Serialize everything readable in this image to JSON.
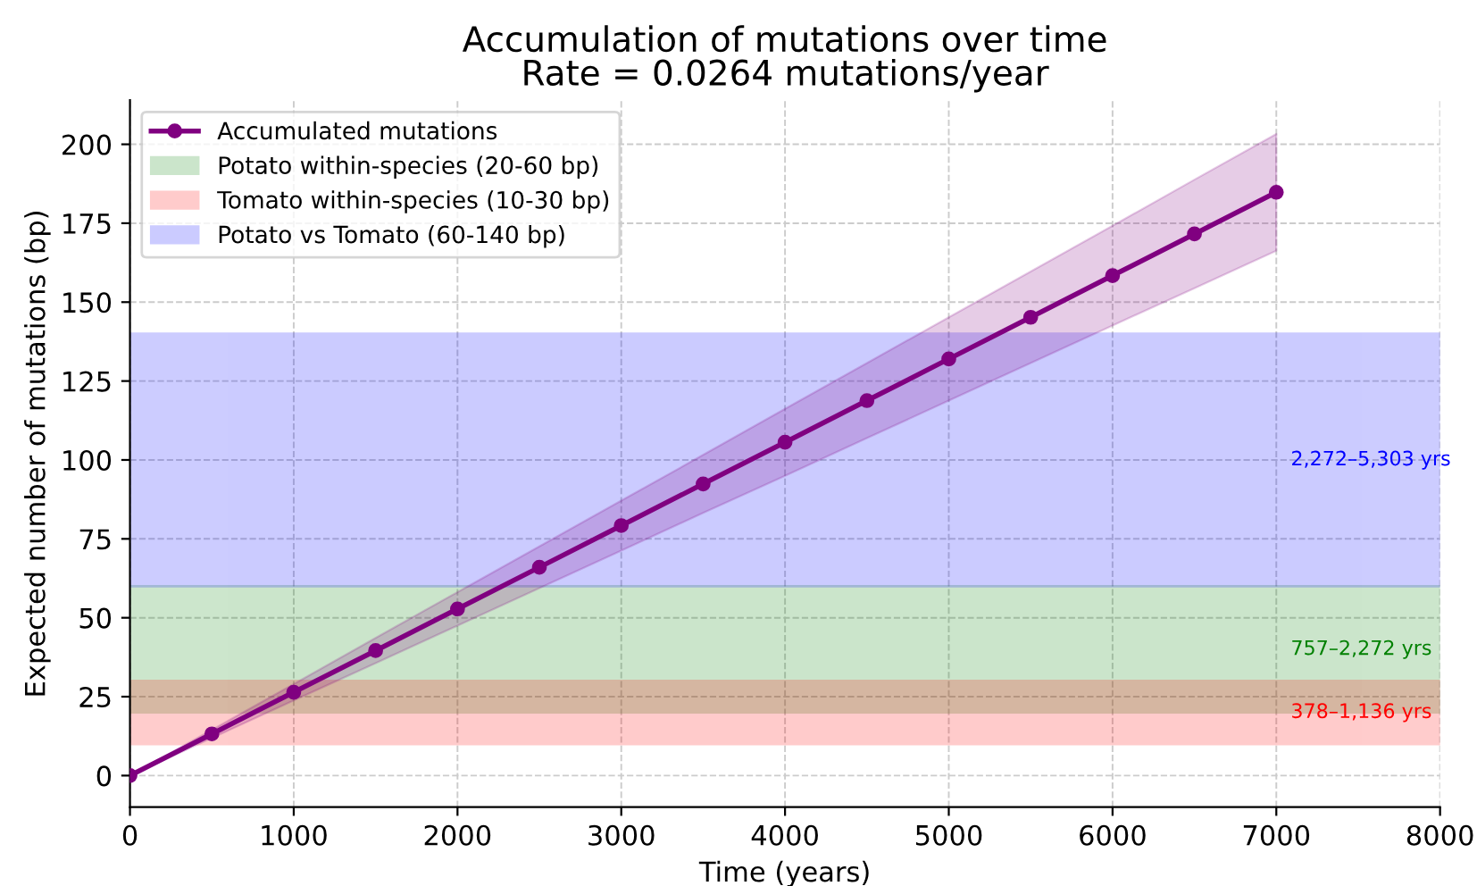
{
  "chart_data": {
    "type": "line",
    "title": "Accumulation of mutations over time",
    "subtitle": "Rate = 0.0264 mutations/year",
    "xlabel": "Time (years)",
    "ylabel": "Expected number of mutations (bp)",
    "x": [
      0,
      500,
      1000,
      1500,
      2000,
      2500,
      3000,
      3500,
      4000,
      4500,
      5000,
      5500,
      6000,
      6500,
      7000
    ],
    "series": [
      {
        "name": "Accumulated mutations",
        "color": "#800080",
        "values": [
          0,
          13.2,
          26.4,
          39.6,
          52.8,
          66,
          79.2,
          92.4,
          105.6,
          118.8,
          132,
          145.2,
          158.4,
          171.6,
          184.8
        ],
        "lower": [
          0,
          11.9,
          23.8,
          35.6,
          47.5,
          59.4,
          71.3,
          83.2,
          95,
          106.9,
          118.8,
          130.7,
          142.6,
          154.4,
          166.3
        ],
        "upper": [
          0,
          14.5,
          29,
          43.6,
          58.1,
          72.6,
          87.1,
          101.6,
          116.2,
          130.7,
          145.2,
          159.7,
          174.2,
          188.8,
          203.3
        ]
      }
    ],
    "bands": [
      {
        "axis": "y",
        "from": 20,
        "to": 60,
        "label": "Potato within-species (20-60 bp)",
        "color": "#008000"
      },
      {
        "axis": "y",
        "from": 10,
        "to": 30,
        "label": "Tomato within-species (10-30 bp)",
        "color": "#ff0000"
      },
      {
        "axis": "y",
        "from": 60,
        "to": 140,
        "label": "Potato vs Tomato (60-140 bp)",
        "color": "#0000ff"
      }
    ],
    "annotations": [
      "757–2,272 yrs",
      "378–1,136 yrs",
      "2,272–5,303 yrs"
    ],
    "xlim": [
      0,
      8000
    ],
    "ylim": [
      -10,
      214
    ],
    "xticks": [
      0,
      1000,
      2000,
      3000,
      4000,
      5000,
      6000,
      7000,
      8000
    ],
    "yticks": [
      0,
      25,
      50,
      75,
      100,
      125,
      150,
      175,
      200
    ],
    "grid": true,
    "legend": "top left",
    "marker": "circle",
    "line_style": "solid"
  }
}
